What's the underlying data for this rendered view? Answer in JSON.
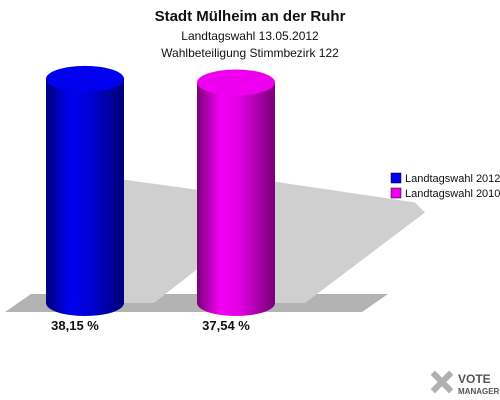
{
  "chart_data": {
    "type": "bar",
    "title": "Stadt Mülheim an der Ruhr",
    "subtitle_lines": [
      "Landtagswahl 13.05.2012",
      "Wahlbeteiligung Stimmbezirk 122"
    ],
    "series": [
      {
        "name": "Landtagswahl 2012",
        "value": 38.15,
        "label": "38,15 %",
        "color": "#0000ee"
      },
      {
        "name": "Landtagswahl 2010",
        "value": 37.54,
        "label": "37,54 %",
        "color": "#ee00ee"
      }
    ],
    "xlabel": "",
    "ylabel": "",
    "ylim": [
      0,
      40
    ],
    "grid": false,
    "legend_position": "right"
  },
  "branding": {
    "logo_line1": "VOTE",
    "logo_line2": "MANAGER"
  }
}
